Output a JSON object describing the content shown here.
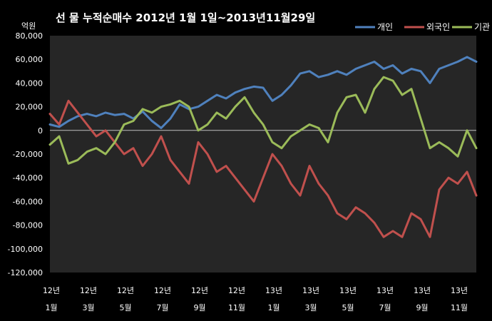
{
  "chart_data": {
    "type": "line",
    "title": "선 물 누적순매수 2012년 1월 1일~2013년11월29일",
    "ylabel": "억원",
    "ylim": [
      -120000,
      80000
    ],
    "yticks": [
      80000,
      60000,
      40000,
      20000,
      0,
      -20000,
      -40000,
      -60000,
      -80000,
      -100000,
      -120000
    ],
    "ytick_labels": [
      "80,000",
      "60,000",
      "40,000",
      "20,000",
      "0",
      "-20,000",
      "-40,000",
      "-60,000",
      "-80,000",
      "-100,000",
      "-120,000"
    ],
    "x_range": [
      0,
      23
    ],
    "xtick_positions": [
      0,
      2,
      4,
      6,
      8,
      10,
      12,
      14,
      16,
      18,
      20,
      22
    ],
    "xtick_labels_year": [
      "12년",
      "12년",
      "12년",
      "12년",
      "12년",
      "12년",
      "13년",
      "13년",
      "13년",
      "13년",
      "13년",
      "13년"
    ],
    "xtick_labels_month": [
      "1월",
      "3월",
      "5월",
      "7월",
      "9월",
      "11월",
      "1월",
      "3월",
      "5월",
      "7월",
      "9월",
      "11월"
    ],
    "grid": false,
    "legend_position": "top-right",
    "series": [
      {
        "name": "개인",
        "color": "#4f81bd",
        "x": [
          0,
          0.5,
          1,
          1.5,
          2,
          2.5,
          3,
          3.5,
          4,
          4.5,
          5,
          5.5,
          6,
          6.5,
          7,
          7.5,
          8,
          8.5,
          9,
          9.5,
          10,
          10.5,
          11,
          11.5,
          12,
          12.5,
          13,
          13.5,
          14,
          14.5,
          15,
          15.5,
          16,
          16.5,
          17,
          17.5,
          18,
          18.5,
          19,
          19.5,
          20,
          20.5,
          21,
          21.5,
          22,
          22.5,
          23
        ],
        "values": [
          5000,
          3000,
          8000,
          12000,
          14000,
          12000,
          15000,
          13000,
          14000,
          10000,
          16000,
          8000,
          2000,
          10000,
          22000,
          18000,
          20000,
          25000,
          30000,
          27000,
          32000,
          35000,
          37000,
          36000,
          25000,
          30000,
          38000,
          48000,
          50000,
          45000,
          47000,
          50000,
          47000,
          52000,
          55000,
          58000,
          52000,
          55000,
          48000,
          52000,
          50000,
          40000,
          52000,
          55000,
          58000,
          62000,
          58000
        ]
      },
      {
        "name": "외국인",
        "color": "#c0504d",
        "x": [
          0,
          0.5,
          1,
          1.5,
          2,
          2.5,
          3,
          3.5,
          4,
          4.5,
          5,
          5.5,
          6,
          6.5,
          7,
          7.5,
          8,
          8.5,
          9,
          9.5,
          10,
          10.5,
          11,
          11.5,
          12,
          12.5,
          13,
          13.5,
          14,
          14.5,
          15,
          15.5,
          16,
          16.5,
          17,
          17.5,
          18,
          18.5,
          19,
          19.5,
          20,
          20.5,
          21,
          21.5,
          22,
          22.5,
          23
        ],
        "values": [
          14000,
          5000,
          25000,
          15000,
          5000,
          -5000,
          0,
          -10000,
          -20000,
          -15000,
          -30000,
          -20000,
          -5000,
          -25000,
          -35000,
          -45000,
          -10000,
          -20000,
          -35000,
          -30000,
          -40000,
          -50000,
          -60000,
          -40000,
          -20000,
          -30000,
          -45000,
          -55000,
          -30000,
          -45000,
          -55000,
          -70000,
          -75000,
          -65000,
          -70000,
          -78000,
          -90000,
          -85000,
          -90000,
          -70000,
          -75000,
          -90000,
          -50000,
          -40000,
          -45000,
          -35000,
          -55000
        ]
      },
      {
        "name": "기관",
        "color": "#9bbb59",
        "x": [
          0,
          0.5,
          1,
          1.5,
          2,
          2.5,
          3,
          3.5,
          4,
          4.5,
          5,
          5.5,
          6,
          6.5,
          7,
          7.5,
          8,
          8.5,
          9,
          9.5,
          10,
          10.5,
          11,
          11.5,
          12,
          12.5,
          13,
          13.5,
          14,
          14.5,
          15,
          15.5,
          16,
          16.5,
          17,
          17.5,
          18,
          18.5,
          19,
          19.5,
          20,
          20.5,
          21,
          21.5,
          22,
          22.5,
          23
        ],
        "values": [
          -12000,
          -5000,
          -28000,
          -25000,
          -18000,
          -15000,
          -20000,
          -10000,
          5000,
          8000,
          18000,
          15000,
          20000,
          22000,
          25000,
          20000,
          0,
          5000,
          15000,
          10000,
          20000,
          28000,
          15000,
          5000,
          -10000,
          -15000,
          -5000,
          0,
          5000,
          2000,
          -10000,
          15000,
          28000,
          30000,
          15000,
          35000,
          45000,
          42000,
          30000,
          35000,
          10000,
          -15000,
          -10000,
          -15000,
          -22000,
          0,
          -15000
        ]
      }
    ]
  }
}
